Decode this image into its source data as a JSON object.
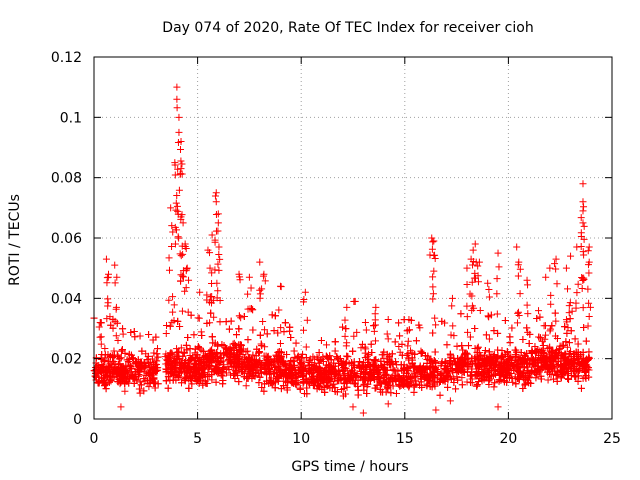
{
  "chart_data": {
    "type": "scatter",
    "title": "Day 074 of 2020, Rate Of TEC Index for receiver cioh",
    "xlabel": "GPS time / hours",
    "ylabel": "ROTI / TECUs",
    "xlim": [
      0,
      25
    ],
    "ylim": [
      0,
      0.12
    ],
    "x_ticks": [
      0,
      5,
      10,
      15,
      20,
      25
    ],
    "x_tick_labels": [
      "0",
      "5",
      "10",
      "15",
      "20",
      "25"
    ],
    "y_ticks": [
      0,
      0.02,
      0.04,
      0.06,
      0.08,
      0.1,
      0.12
    ],
    "y_tick_labels": [
      "0",
      "0.02",
      "0.04",
      "0.06",
      "0.08",
      "0.1",
      "0.12"
    ],
    "grid": true,
    "marker": "+",
    "color": "#ff0000",
    "series": [
      {
        "name": "ROTI",
        "baseline_points": [
          [
            0.0,
            0.016
          ],
          [
            0.5,
            0.015
          ],
          [
            1.0,
            0.017
          ],
          [
            1.5,
            0.016
          ],
          [
            2.0,
            0.015
          ],
          [
            2.5,
            0.016
          ],
          [
            3.0,
            0.016
          ],
          [
            3.5,
            0.016
          ],
          [
            4.0,
            0.018
          ],
          [
            4.5,
            0.017
          ],
          [
            5.0,
            0.017
          ],
          [
            5.5,
            0.018
          ],
          [
            6.0,
            0.019
          ],
          [
            6.5,
            0.019
          ],
          [
            7.0,
            0.019
          ],
          [
            7.5,
            0.019
          ],
          [
            8.0,
            0.018
          ],
          [
            8.5,
            0.017
          ],
          [
            9.0,
            0.017
          ],
          [
            9.5,
            0.016
          ],
          [
            10.0,
            0.016
          ],
          [
            10.5,
            0.015
          ],
          [
            11.0,
            0.015
          ],
          [
            11.5,
            0.015
          ],
          [
            12.0,
            0.015
          ],
          [
            12.5,
            0.015
          ],
          [
            13.0,
            0.015
          ],
          [
            13.5,
            0.015
          ],
          [
            14.0,
            0.015
          ],
          [
            14.5,
            0.015
          ],
          [
            15.0,
            0.015
          ],
          [
            15.5,
            0.015
          ],
          [
            16.0,
            0.016
          ],
          [
            16.5,
            0.016
          ],
          [
            17.0,
            0.016
          ],
          [
            17.5,
            0.017
          ],
          [
            18.0,
            0.018
          ],
          [
            18.5,
            0.018
          ],
          [
            19.0,
            0.017
          ],
          [
            19.5,
            0.017
          ],
          [
            20.0,
            0.018
          ],
          [
            20.5,
            0.017
          ],
          [
            21.0,
            0.018
          ],
          [
            21.5,
            0.019
          ],
          [
            22.0,
            0.019
          ],
          [
            22.5,
            0.019
          ],
          [
            23.0,
            0.018
          ],
          [
            23.5,
            0.017
          ],
          [
            23.9,
            0.017
          ]
        ],
        "peak_points": [
          [
            0.3,
            0.032
          ],
          [
            0.6,
            0.053
          ],
          [
            0.7,
            0.048
          ],
          [
            1.0,
            0.051
          ],
          [
            1.1,
            0.047
          ],
          [
            3.5,
            0.031
          ],
          [
            3.7,
            0.07
          ],
          [
            3.8,
            0.062
          ],
          [
            3.9,
            0.085
          ],
          [
            4.0,
            0.11
          ],
          [
            4.0,
            0.106
          ],
          [
            4.1,
            0.1
          ],
          [
            4.1,
            0.095
          ],
          [
            4.2,
            0.092
          ],
          [
            4.2,
            0.083
          ],
          [
            4.2,
            0.067
          ],
          [
            4.3,
            0.065
          ],
          [
            4.4,
            0.058
          ],
          [
            4.5,
            0.05
          ],
          [
            5.1,
            0.042
          ],
          [
            5.5,
            0.056
          ],
          [
            5.6,
            0.05
          ],
          [
            5.7,
            0.061
          ],
          [
            5.9,
            0.075
          ],
          [
            5.9,
            0.072
          ],
          [
            6.0,
            0.068
          ],
          [
            6.0,
            0.065
          ],
          [
            7.0,
            0.048
          ],
          [
            7.5,
            0.047
          ],
          [
            8.0,
            0.052
          ],
          [
            8.2,
            0.048
          ],
          [
            9.0,
            0.044
          ],
          [
            10.2,
            0.042
          ],
          [
            12.2,
            0.037
          ],
          [
            12.6,
            0.039
          ],
          [
            13.1,
            0.032
          ],
          [
            13.6,
            0.037
          ],
          [
            14.2,
            0.033
          ],
          [
            15.2,
            0.033
          ],
          [
            16.3,
            0.06
          ],
          [
            16.4,
            0.059
          ],
          [
            16.4,
            0.049
          ],
          [
            17.3,
            0.04
          ],
          [
            18.0,
            0.05
          ],
          [
            18.2,
            0.053
          ],
          [
            18.3,
            0.056
          ],
          [
            18.4,
            0.058
          ],
          [
            18.6,
            0.052
          ],
          [
            19.0,
            0.045
          ],
          [
            19.5,
            0.055
          ],
          [
            20.4,
            0.057
          ],
          [
            20.5,
            0.052
          ],
          [
            20.9,
            0.046
          ],
          [
            21.8,
            0.047
          ],
          [
            22.0,
            0.05
          ],
          [
            22.3,
            0.053
          ],
          [
            22.8,
            0.05
          ],
          [
            23.0,
            0.054
          ],
          [
            23.3,
            0.057
          ],
          [
            23.6,
            0.078
          ],
          [
            23.6,
            0.072
          ],
          [
            23.6,
            0.069
          ],
          [
            23.6,
            0.065
          ],
          [
            23.9,
            0.057
          ],
          [
            23.9,
            0.052
          ]
        ],
        "low_points": [
          [
            1.3,
            0.004
          ],
          [
            12.5,
            0.004
          ],
          [
            13.0,
            0.002
          ],
          [
            14.2,
            0.005
          ],
          [
            16.5,
            0.003
          ],
          [
            17.2,
            0.006
          ],
          [
            19.5,
            0.004
          ]
        ],
        "gaps": [
          [
            3.1,
            3.45
          ],
          [
            8.1,
            8.2
          ]
        ]
      }
    ]
  }
}
